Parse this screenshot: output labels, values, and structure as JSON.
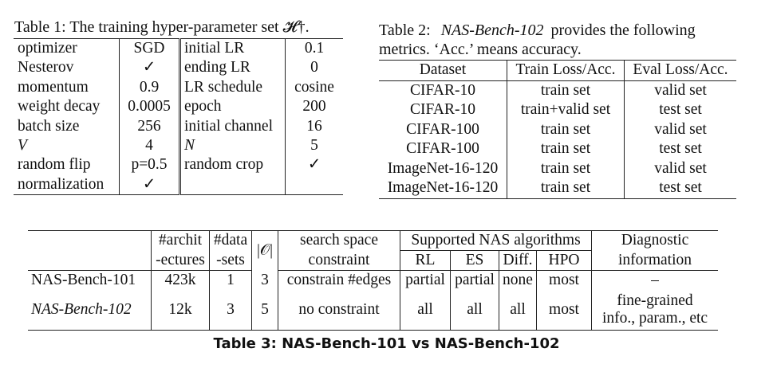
{
  "table1": {
    "caption": "Table 1:  The training hyper-parameter set 𝓗†.",
    "rows": [
      [
        "optimizer",
        "SGD",
        "initial LR",
        "0.1"
      ],
      [
        "Nesterov",
        "✓",
        "ending LR",
        "0"
      ],
      [
        "momentum",
        "0.9",
        "LR schedule",
        "cosine"
      ],
      [
        "weight decay",
        "0.0005",
        "epoch",
        "200"
      ],
      [
        "batch size",
        "256",
        "initial channel",
        "16"
      ],
      [
        "V",
        "4",
        "N",
        "5"
      ],
      [
        "random flip",
        "p=0.5",
        "random crop",
        "✓"
      ],
      [
        "normalization",
        "✓",
        "",
        ""
      ]
    ]
  },
  "table2": {
    "caption_line1_prefix": "Table 2:",
    "caption_line1_italic": "NAS-Bench-102",
    "caption_line1_suffix": "provides the following",
    "caption_line2": "metrics. ‘Acc.’ means accuracy.",
    "headers": [
      "Dataset",
      "Train Loss/Acc.",
      "Eval Loss/Acc."
    ],
    "rows": [
      [
        "CIFAR-10",
        "train set",
        "valid set"
      ],
      [
        "CIFAR-10",
        "train+valid set",
        "test set"
      ],
      [
        "CIFAR-100",
        "train set",
        "valid set"
      ],
      [
        "CIFAR-100",
        "train set",
        "test set"
      ],
      [
        "ImageNet-16-120",
        "train set",
        "valid set"
      ],
      [
        "ImageNet-16-120",
        "train set",
        "test set"
      ]
    ]
  },
  "table3": {
    "header_top": {
      "archit": "#archit",
      "data": "#data",
      "ops": "|𝒪|",
      "search": "search space",
      "supported": "Supported NAS algorithms",
      "diag": "Diagnostic"
    },
    "header_bottom": {
      "archit": "-ectures",
      "data": "-sets",
      "search": "constraint",
      "rl": "RL",
      "es": "ES",
      "diff": "Diff.",
      "hpo": "HPO",
      "diag": "information"
    },
    "row1": [
      "NAS-Bench-101",
      "423k",
      "1",
      "3",
      "constrain #edges",
      "partial",
      "partial",
      "none",
      "most",
      "–"
    ],
    "row2": {
      "name": "NAS-Bench-102",
      "archit": "12k",
      "data": "3",
      "ops": "5",
      "search": "no constraint",
      "rl": "all",
      "es": "all",
      "diff": "all",
      "hpo": "most",
      "diag_line1": "fine-grained",
      "diag_line2": "info., param., etc"
    },
    "caption": "Table 3: NAS-Bench-101 vs NAS-Bench-102"
  }
}
